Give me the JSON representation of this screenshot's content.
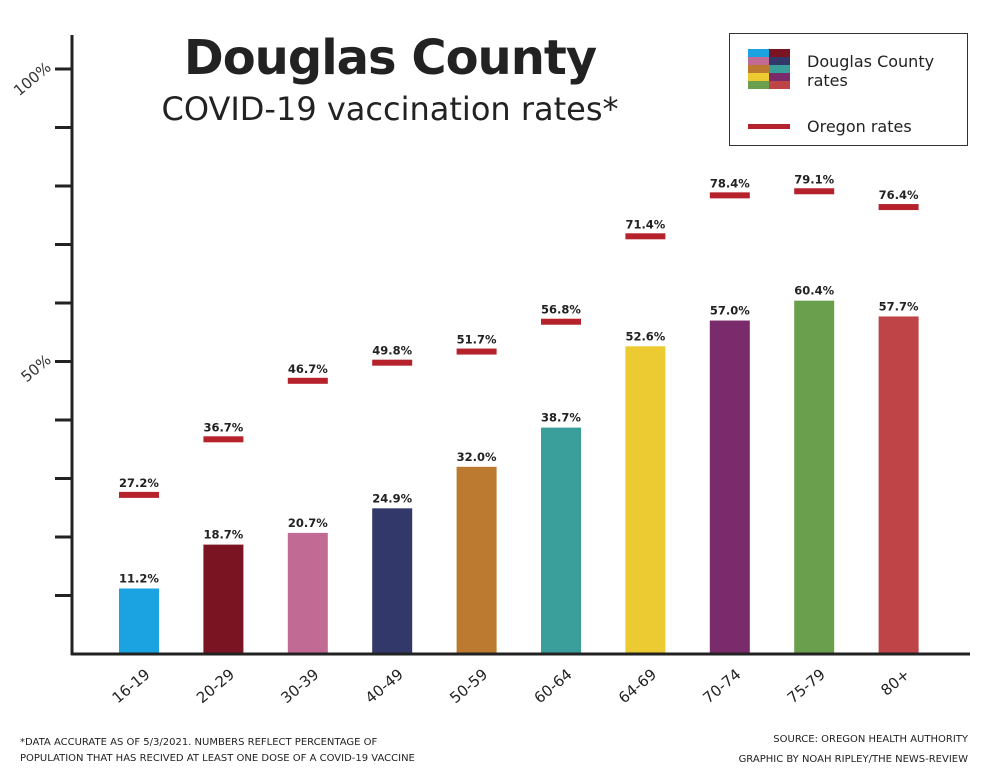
{
  "header": {
    "title": "Douglas County",
    "subtitle": "COVID-19 vaccination rates*"
  },
  "legend": {
    "county_label_line1": "Douglas County",
    "county_label_line2": "rates",
    "state_label": "Oregon rates"
  },
  "footer": {
    "note_line1": "*DATA ACCURATE AS OF 5/3/2021. NUMBERS REFLECT PERCENTAGE OF",
    "note_line2": "POPULATION THAT HAS RECIVED AT LEAST ONE DOSE OF A COVID-19 VACCINE",
    "source": "SOURCE: OREGON HEALTH AUTHORITY",
    "credit": "GRAPHIC BY NOAH RIPLEY/THE NEWS-REVIEW"
  },
  "colors": {
    "oregon_line": "#b5222b",
    "axis": "#222222",
    "bars": [
      "#1aa3e0",
      "#7a1322",
      "#c06a94",
      "#323869",
      "#bb7a30",
      "#3a9e9b",
      "#ebcb31",
      "#7a2b6b",
      "#6aa04d",
      "#bf4448"
    ]
  },
  "chart_data": {
    "type": "bar",
    "title": "Douglas County",
    "subtitle": "COVID-19 vaccination rates*",
    "categories": [
      "16-19",
      "20-29",
      "30-39",
      "40-49",
      "50-59",
      "60-64",
      "64-69",
      "70-74",
      "75-79",
      "80+"
    ],
    "series": [
      {
        "name": "Douglas County rates",
        "values": [
          11.2,
          18.7,
          20.7,
          24.9,
          32.0,
          38.7,
          52.6,
          57.0,
          60.4,
          57.7
        ],
        "labels": [
          "11.2%",
          "18.7%",
          "20.7%",
          "24.9%",
          "32.0%",
          "38.7%",
          "52.6%",
          "57.0%",
          "60.4%",
          "57.7%"
        ]
      },
      {
        "name": "Oregon rates",
        "values": [
          27.2,
          36.7,
          46.7,
          49.8,
          51.7,
          56.8,
          71.4,
          78.4,
          79.1,
          76.4
        ],
        "labels": [
          "27.2%",
          "36.7%",
          "46.7%",
          "49.8%",
          "51.7%",
          "56.8%",
          "71.4%",
          "78.4%",
          "79.1%",
          "76.4%"
        ]
      }
    ],
    "ylim": [
      0,
      100
    ],
    "y_tick_values": [
      10,
      20,
      30,
      40,
      50,
      60,
      70,
      80,
      90,
      100
    ],
    "y_tick_labels": [
      {
        "value": 50,
        "label": "50%"
      },
      {
        "value": 100,
        "label": "100%"
      }
    ],
    "grid": false,
    "legend_position": "top-right"
  }
}
